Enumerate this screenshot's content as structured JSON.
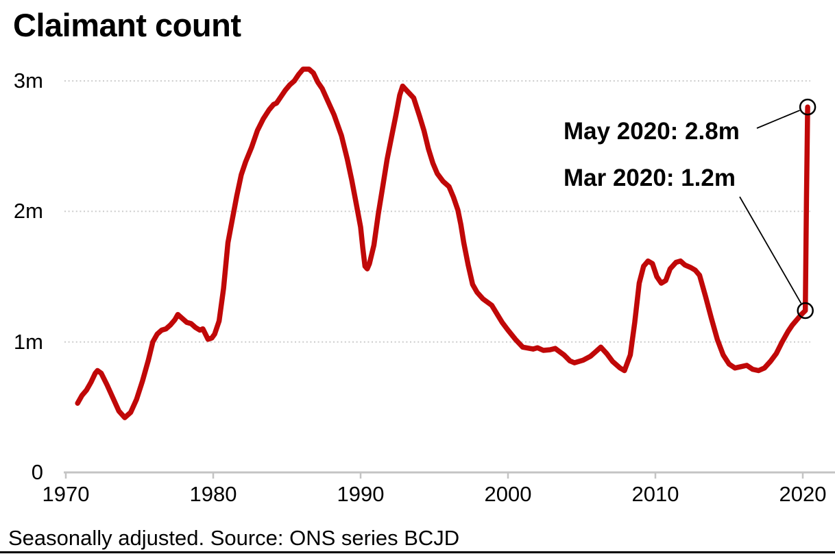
{
  "title": "Claimant count",
  "footnote": "Seasonally adjusted. Source: ONS series BCJD",
  "colors": {
    "line": "#c00808",
    "grid": "#cccccc",
    "axis": "#c4c4c4",
    "text": "#000000",
    "annotation_line": "#000000"
  },
  "chart_data": {
    "type": "line",
    "title": "Claimant count",
    "subtitle": "Seasonally adjusted. Source: ONS series BCJD",
    "unit": "millions of claimants",
    "xlabel": "",
    "ylabel": "",
    "x_range": [
      1970,
      2020.6
    ],
    "y_range": [
      0,
      3.25
    ],
    "grid": "dotted horizontal",
    "legend": "none",
    "y_ticks": [
      {
        "label": "3m",
        "value": 3
      },
      {
        "label": "2m",
        "value": 2
      },
      {
        "label": "1m",
        "value": 1
      },
      {
        "label": "0",
        "value": 0
      }
    ],
    "x_ticks": [
      {
        "label": "1970",
        "value": 1970
      },
      {
        "label": "1980",
        "value": 1980
      },
      {
        "label": "1990",
        "value": 1990
      },
      {
        "label": "2000",
        "value": 2000
      },
      {
        "label": "2010",
        "value": 2010
      },
      {
        "label": "2020",
        "value": 2020
      }
    ],
    "series": [
      {
        "name": "Claimant count (seasonally adjusted)",
        "color": "#c00808",
        "points": [
          [
            1970.8,
            0.53
          ],
          [
            1971.1,
            0.59
          ],
          [
            1971.4,
            0.63
          ],
          [
            1971.7,
            0.69
          ],
          [
            1972.0,
            0.76
          ],
          [
            1972.15,
            0.78
          ],
          [
            1972.4,
            0.76
          ],
          [
            1972.8,
            0.67
          ],
          [
            1973.2,
            0.57
          ],
          [
            1973.6,
            0.47
          ],
          [
            1974.0,
            0.42
          ],
          [
            1974.4,
            0.46
          ],
          [
            1974.8,
            0.56
          ],
          [
            1975.2,
            0.7
          ],
          [
            1975.6,
            0.86
          ],
          [
            1975.9,
            1.0
          ],
          [
            1976.2,
            1.06
          ],
          [
            1976.5,
            1.09
          ],
          [
            1976.8,
            1.1
          ],
          [
            1977.1,
            1.13
          ],
          [
            1977.4,
            1.17
          ],
          [
            1977.6,
            1.21
          ],
          [
            1977.9,
            1.18
          ],
          [
            1978.2,
            1.15
          ],
          [
            1978.5,
            1.14
          ],
          [
            1978.8,
            1.11
          ],
          [
            1979.1,
            1.09
          ],
          [
            1979.3,
            1.1
          ],
          [
            1979.65,
            1.02
          ],
          [
            1979.9,
            1.03
          ],
          [
            1980.1,
            1.06
          ],
          [
            1980.4,
            1.16
          ],
          [
            1980.7,
            1.41
          ],
          [
            1981.0,
            1.76
          ],
          [
            1981.3,
            1.94
          ],
          [
            1981.6,
            2.12
          ],
          [
            1981.9,
            2.28
          ],
          [
            1982.2,
            2.38
          ],
          [
            1982.6,
            2.49
          ],
          [
            1983.0,
            2.62
          ],
          [
            1983.4,
            2.71
          ],
          [
            1983.8,
            2.78
          ],
          [
            1984.1,
            2.82
          ],
          [
            1984.3,
            2.83
          ],
          [
            1984.6,
            2.88
          ],
          [
            1984.9,
            2.93
          ],
          [
            1985.2,
            2.97
          ],
          [
            1985.5,
            3.0
          ],
          [
            1985.8,
            3.05
          ],
          [
            1986.1,
            3.09
          ],
          [
            1986.5,
            3.09
          ],
          [
            1986.8,
            3.06
          ],
          [
            1987.1,
            2.99
          ],
          [
            1987.4,
            2.94
          ],
          [
            1987.8,
            2.84
          ],
          [
            1988.2,
            2.74
          ],
          [
            1988.7,
            2.58
          ],
          [
            1989.1,
            2.4
          ],
          [
            1989.4,
            2.24
          ],
          [
            1989.7,
            2.06
          ],
          [
            1990.0,
            1.88
          ],
          [
            1990.15,
            1.72
          ],
          [
            1990.3,
            1.58
          ],
          [
            1990.45,
            1.56
          ],
          [
            1990.6,
            1.6
          ],
          [
            1990.9,
            1.74
          ],
          [
            1991.2,
            1.98
          ],
          [
            1991.5,
            2.19
          ],
          [
            1991.8,
            2.4
          ],
          [
            1992.1,
            2.57
          ],
          [
            1992.4,
            2.74
          ],
          [
            1992.65,
            2.89
          ],
          [
            1992.85,
            2.96
          ],
          [
            1993.1,
            2.93
          ],
          [
            1993.6,
            2.87
          ],
          [
            1994.0,
            2.73
          ],
          [
            1994.3,
            2.62
          ],
          [
            1994.6,
            2.48
          ],
          [
            1994.9,
            2.37
          ],
          [
            1995.2,
            2.29
          ],
          [
            1995.6,
            2.23
          ],
          [
            1996.0,
            2.19
          ],
          [
            1996.3,
            2.11
          ],
          [
            1996.6,
            2.01
          ],
          [
            1996.8,
            1.9
          ],
          [
            1997.0,
            1.76
          ],
          [
            1997.3,
            1.59
          ],
          [
            1997.6,
            1.44
          ],
          [
            1997.9,
            1.38
          ],
          [
            1998.3,
            1.33
          ],
          [
            1998.9,
            1.28
          ],
          [
            1999.6,
            1.15
          ],
          [
            2000.0,
            1.09
          ],
          [
            2000.5,
            1.02
          ],
          [
            2001.0,
            0.96
          ],
          [
            2001.7,
            0.945
          ],
          [
            2002.0,
            0.955
          ],
          [
            2002.4,
            0.935
          ],
          [
            2002.85,
            0.94
          ],
          [
            2003.2,
            0.95
          ],
          [
            2003.8,
            0.9
          ],
          [
            2004.2,
            0.855
          ],
          [
            2004.5,
            0.84
          ],
          [
            2005.1,
            0.86
          ],
          [
            2005.6,
            0.89
          ],
          [
            2006.0,
            0.93
          ],
          [
            2006.3,
            0.96
          ],
          [
            2006.7,
            0.91
          ],
          [
            2007.1,
            0.85
          ],
          [
            2007.6,
            0.8
          ],
          [
            2007.9,
            0.78
          ],
          [
            2008.3,
            0.9
          ],
          [
            2008.6,
            1.15
          ],
          [
            2008.9,
            1.45
          ],
          [
            2009.2,
            1.58
          ],
          [
            2009.5,
            1.62
          ],
          [
            2009.8,
            1.6
          ],
          [
            2010.1,
            1.5
          ],
          [
            2010.4,
            1.45
          ],
          [
            2010.7,
            1.47
          ],
          [
            2011.0,
            1.56
          ],
          [
            2011.4,
            1.61
          ],
          [
            2011.7,
            1.62
          ],
          [
            2012.0,
            1.59
          ],
          [
            2012.4,
            1.57
          ],
          [
            2012.7,
            1.55
          ],
          [
            2013.0,
            1.51
          ],
          [
            2013.4,
            1.35
          ],
          [
            2013.8,
            1.18
          ],
          [
            2014.2,
            1.02
          ],
          [
            2014.6,
            0.9
          ],
          [
            2015.0,
            0.83
          ],
          [
            2015.4,
            0.8
          ],
          [
            2015.8,
            0.81
          ],
          [
            2016.2,
            0.82
          ],
          [
            2016.6,
            0.79
          ],
          [
            2017.0,
            0.78
          ],
          [
            2017.4,
            0.8
          ],
          [
            2017.8,
            0.85
          ],
          [
            2018.2,
            0.91
          ],
          [
            2018.6,
            1.0
          ],
          [
            2019.0,
            1.08
          ],
          [
            2019.3,
            1.13
          ],
          [
            2019.6,
            1.17
          ],
          [
            2019.9,
            1.21
          ],
          [
            2020.17,
            1.24
          ],
          [
            2020.25,
            2.1
          ],
          [
            2020.33,
            2.8
          ]
        ]
      }
    ],
    "annotations": [
      {
        "id": "may",
        "label": "May 2020: 2.8m",
        "point": {
          "year": 2020.33,
          "value": 2.8
        },
        "marker": "open-circle"
      },
      {
        "id": "mar",
        "label": "Mar 2020: 1.2m",
        "point": {
          "year": 2020.17,
          "value": 1.24
        },
        "marker": "open-circle"
      }
    ]
  }
}
